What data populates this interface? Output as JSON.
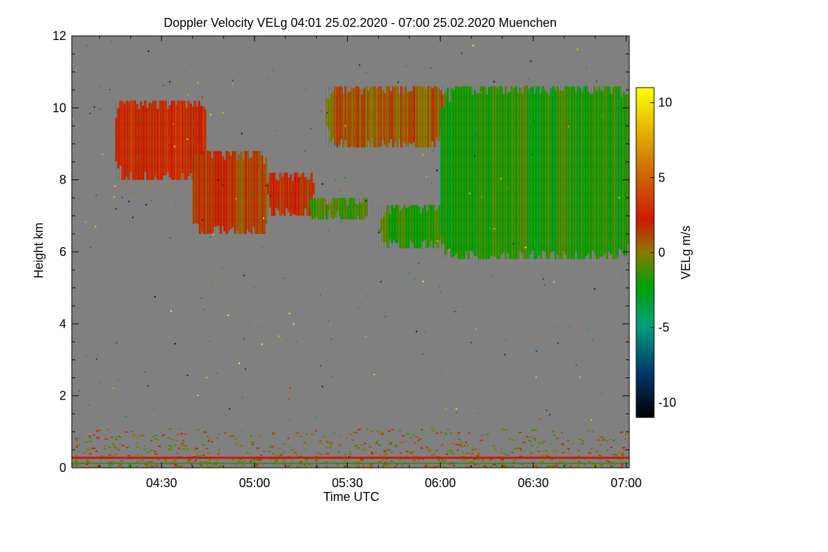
{
  "chart_data": {
    "type": "heatmap",
    "title": "Doppler Velocity VELg   04:01 25.02.2020 - 07:00 25.02.2020 Muenchen",
    "xlabel": "Time UTC",
    "ylabel": "Height km",
    "xlim": [
      "04:01",
      "07:01"
    ],
    "ylim": [
      0,
      12
    ],
    "x_ticks": [
      "04:30",
      "05:00",
      "05:30",
      "06:00",
      "06:30",
      "07:00"
    ],
    "y_ticks": [
      "0",
      "2",
      "4",
      "6",
      "8",
      "10",
      "12"
    ],
    "colorbar": {
      "label": "VELg m/s",
      "range": [
        -11,
        11
      ],
      "ticks": [
        "10",
        "5",
        "0",
        "-5",
        "-10"
      ],
      "colors": [
        "#000000",
        "#003a6e",
        "#00a07a",
        "#00a000",
        "#8a7a00",
        "#cc1a00",
        "#d08000",
        "#ffff00"
      ]
    },
    "background_color": "#808080",
    "cloud_layer": {
      "description_height_km": [
        5.8,
        10.6
      ],
      "segments": [
        {
          "t_start": "04:15",
          "t_end": "04:44",
          "base_km": 8.0,
          "top_km": 10.2,
          "velocity_ms": 2.5
        },
        {
          "t_start": "04:40",
          "t_end": "05:04",
          "base_km": 6.5,
          "top_km": 8.8,
          "velocity_ms": 1.5
        },
        {
          "t_start": "05:04",
          "t_end": "05:19",
          "base_km": 7.0,
          "top_km": 8.2,
          "velocity_ms": 2.0
        },
        {
          "t_start": "05:17",
          "t_end": "05:37",
          "base_km": 6.9,
          "top_km": 7.5,
          "velocity_ms": -1.0
        },
        {
          "t_start": "05:23",
          "t_end": "06:01",
          "base_km": 8.9,
          "top_km": 10.6,
          "velocity_ms": 0.8
        },
        {
          "t_start": "05:40",
          "t_end": "06:10",
          "base_km": 6.1,
          "top_km": 7.3,
          "velocity_ms": -1.5
        },
        {
          "t_start": "06:00",
          "t_end": "07:01",
          "base_km": 5.8,
          "top_km": 10.6,
          "velocity_ms": -1.8
        }
      ]
    },
    "surface_clutter": {
      "base_km": 0.0,
      "top_km": 1.1,
      "red_line_km": 0.28,
      "velocity_ms": 0.5
    }
  }
}
